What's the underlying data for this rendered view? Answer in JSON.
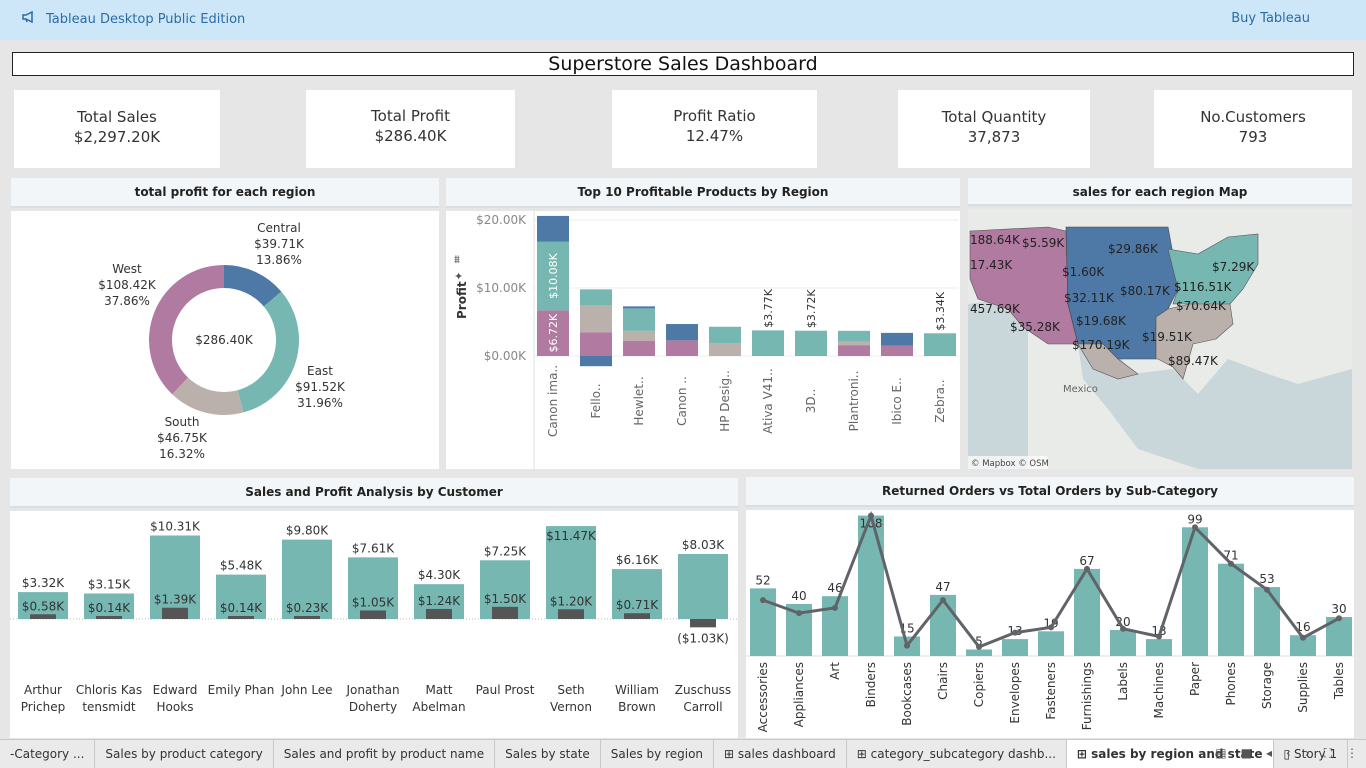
{
  "topbar": {
    "brand": "Tableau Desktop Public Edition",
    "buy": "Buy Tableau"
  },
  "dashboard": {
    "title": "Superstore Sales Dashboard"
  },
  "kpis": [
    {
      "label": "Total Sales",
      "value": "$2,297.20K"
    },
    {
      "label": "Total Profit",
      "value": "$286.40K"
    },
    {
      "label": "Profit Ratio",
      "value": "12.47%"
    },
    {
      "label": "Total Quantity",
      "value": "37,873"
    },
    {
      "label": "No.Customers",
      "value": "793"
    }
  ],
  "colors": {
    "central": "#4e79a7",
    "east": "#76b7b2",
    "south": "#bab0ac",
    "west": "#b07aa1",
    "teal": "#76b7b2",
    "dark": "#555555"
  },
  "panels": {
    "donut_title": "total profit for each region",
    "top10_title": "Top 10 Profitable Products by Region",
    "map_title": "sales for each region Map",
    "customer_title": "Sales and Profit Analysis by Customer",
    "returns_title": "Returned Orders vs Total Orders by Sub-Category"
  },
  "chart_data": [
    {
      "type": "pie",
      "title": "total profit for each region",
      "center_label": "$286.40K",
      "slices": [
        {
          "name": "Central",
          "value_label": "$39.71K",
          "pct": 13.86,
          "pct_label": "13.86%",
          "color": "#4e79a7"
        },
        {
          "name": "East",
          "value_label": "$91.52K",
          "pct": 31.96,
          "pct_label": "31.96%",
          "color": "#76b7b2"
        },
        {
          "name": "South",
          "value_label": "$46.75K",
          "pct": 16.32,
          "pct_label": "16.32%",
          "color": "#bab0ac"
        },
        {
          "name": "West",
          "value_label": "$108.42K",
          "pct": 37.86,
          "pct_label": "37.86%",
          "color": "#b07aa1"
        }
      ]
    },
    {
      "type": "bar",
      "title": "Top 10 Profitable Products by Region",
      "ylabel": "Profit",
      "yticks": [
        "$20.00K",
        "$10.00K",
        "$0.00K"
      ],
      "ylim": [
        -1.6,
        21
      ],
      "categories": [
        "Canon ima..",
        "Fello..",
        "Hewlet..",
        "Canon ..",
        "HP Desig..",
        "Ativa V41..",
        "3D..",
        "Plantroni..",
        "Ibico E..",
        "Zebra.."
      ],
      "stacks": [
        [
          {
            "r": "west",
            "v": 6.72
          },
          {
            "r": "east",
            "v": 10.08
          },
          {
            "r": "central",
            "v": 3.8
          }
        ],
        [
          {
            "r": "west",
            "v": 3.5
          },
          {
            "r": "south",
            "v": 4.0
          },
          {
            "r": "east",
            "v": 2.3
          },
          {
            "r": "central",
            "v": -1.5
          }
        ],
        [
          {
            "r": "west",
            "v": 2.2
          },
          {
            "r": "south",
            "v": 1.5
          },
          {
            "r": "east",
            "v": 3.3
          },
          {
            "r": "central",
            "v": 0.3
          }
        ],
        [
          {
            "r": "west",
            "v": 2.3
          },
          {
            "r": "central",
            "v": 2.4
          }
        ],
        [
          {
            "r": "south",
            "v": 1.9
          },
          {
            "r": "east",
            "v": 2.4
          }
        ],
        [
          {
            "r": "east",
            "v": 3.77
          }
        ],
        [
          {
            "r": "east",
            "v": 3.72
          }
        ],
        [
          {
            "r": "west",
            "v": 1.6
          },
          {
            "r": "south",
            "v": 0.5
          },
          {
            "r": "east",
            "v": 1.6
          }
        ],
        [
          {
            "r": "west",
            "v": 1.5
          },
          {
            "r": "central",
            "v": 1.9
          }
        ],
        [
          {
            "r": "east",
            "v": 3.34
          }
        ]
      ],
      "labels": [
        {
          "i": 0,
          "text": "$6.72K",
          "seg": 0
        },
        {
          "i": 0,
          "text": "$10.08K",
          "seg": 1
        },
        {
          "i": 5,
          "text": "$3.77K",
          "seg": -1
        },
        {
          "i": 6,
          "text": "$3.72K",
          "seg": -1
        },
        {
          "i": 9,
          "text": "$3.34K",
          "seg": -1
        }
      ]
    },
    {
      "type": "bar",
      "title": "Sales and Profit Analysis by Customer",
      "categories": [
        {
          "line1": "Arthur",
          "line2": "Prichep"
        },
        {
          "line1": "Chloris Kas",
          "line2": "tensmidt"
        },
        {
          "line1": "Edward",
          "line2": "Hooks"
        },
        {
          "line1": "Emily Phan",
          "line2": ""
        },
        {
          "line1": "John Lee",
          "line2": ""
        },
        {
          "line1": "Jonathan",
          "line2": "Doherty"
        },
        {
          "line1": "Matt",
          "line2": "Abelman"
        },
        {
          "line1": "Paul Prost",
          "line2": ""
        },
        {
          "line1": "Seth",
          "line2": "Vernon"
        },
        {
          "line1": "William",
          "line2": "Brown"
        },
        {
          "line1": "Zuschuss",
          "line2": "Carroll"
        }
      ],
      "series": [
        {
          "name": "Sales",
          "values": [
            3.32,
            3.15,
            10.31,
            5.48,
            9.8,
            7.61,
            4.3,
            7.25,
            11.47,
            6.16,
            8.03
          ],
          "labels": [
            "$3.32K",
            "$3.15K",
            "$10.31K",
            "$5.48K",
            "$9.80K",
            "$7.61K",
            "$4.30K",
            "$7.25K",
            "$11.47K",
            "$6.16K",
            "$8.03K"
          ]
        },
        {
          "name": "Profit",
          "values": [
            0.58,
            0.14,
            1.39,
            0.14,
            0.23,
            1.05,
            1.24,
            1.5,
            1.2,
            0.71,
            -1.03
          ],
          "labels": [
            "$0.58K",
            "$0.14K",
            "$1.39K",
            "$0.14K",
            "$0.23K",
            "$1.05K",
            "$1.24K",
            "$1.50K",
            "$1.20K",
            "$0.71K",
            "($1.03K)"
          ]
        }
      ]
    },
    {
      "type": "bar",
      "title": "Returned Orders vs Total Orders by Sub-Category",
      "categories": [
        "Accessories",
        "Appliances",
        "Art",
        "Binders",
        "Bookcases",
        "Chairs",
        "Copiers",
        "Envelopes",
        "Fasteners",
        "Furnishings",
        "Labels",
        "Machines",
        "Paper",
        "Phones",
        "Storage",
        "Supplies",
        "Tables"
      ],
      "series": [
        {
          "name": "Total Orders",
          "values": [
            52,
            40,
            46,
            108,
            15,
            47,
            5,
            13,
            19,
            67,
            20,
            13,
            99,
            71,
            53,
            16,
            30
          ]
        },
        {
          "name": "Returned Orders",
          "values": [
            43,
            33,
            37,
            108,
            8,
            43,
            7,
            18,
            22,
            67,
            21,
            15,
            99,
            71,
            51,
            14,
            29
          ]
        }
      ]
    }
  ],
  "map": {
    "labels": [
      "188.64K",
      "$5.59K",
      "$29.86K",
      "17.43K",
      "$1.60K",
      "$7.29K",
      "$116.51K",
      "$80.17K",
      "$32.11K",
      "$70.64K",
      "457.69K",
      "$19.68K",
      "$35.28K",
      "$19.51K",
      "$170.19K",
      "$89.47K"
    ],
    "country_label": "Mexico",
    "attribution": "© Mapbox © OSM"
  },
  "tabs": [
    "-Category ...",
    "Sales by product category",
    "Sales and profit by product name",
    "Sales by state",
    "Sales by region",
    "sales dashboard",
    "category_subcategory dashb...",
    "sales by region and state",
    "Story 1"
  ],
  "active_tab": "sales by region and state"
}
